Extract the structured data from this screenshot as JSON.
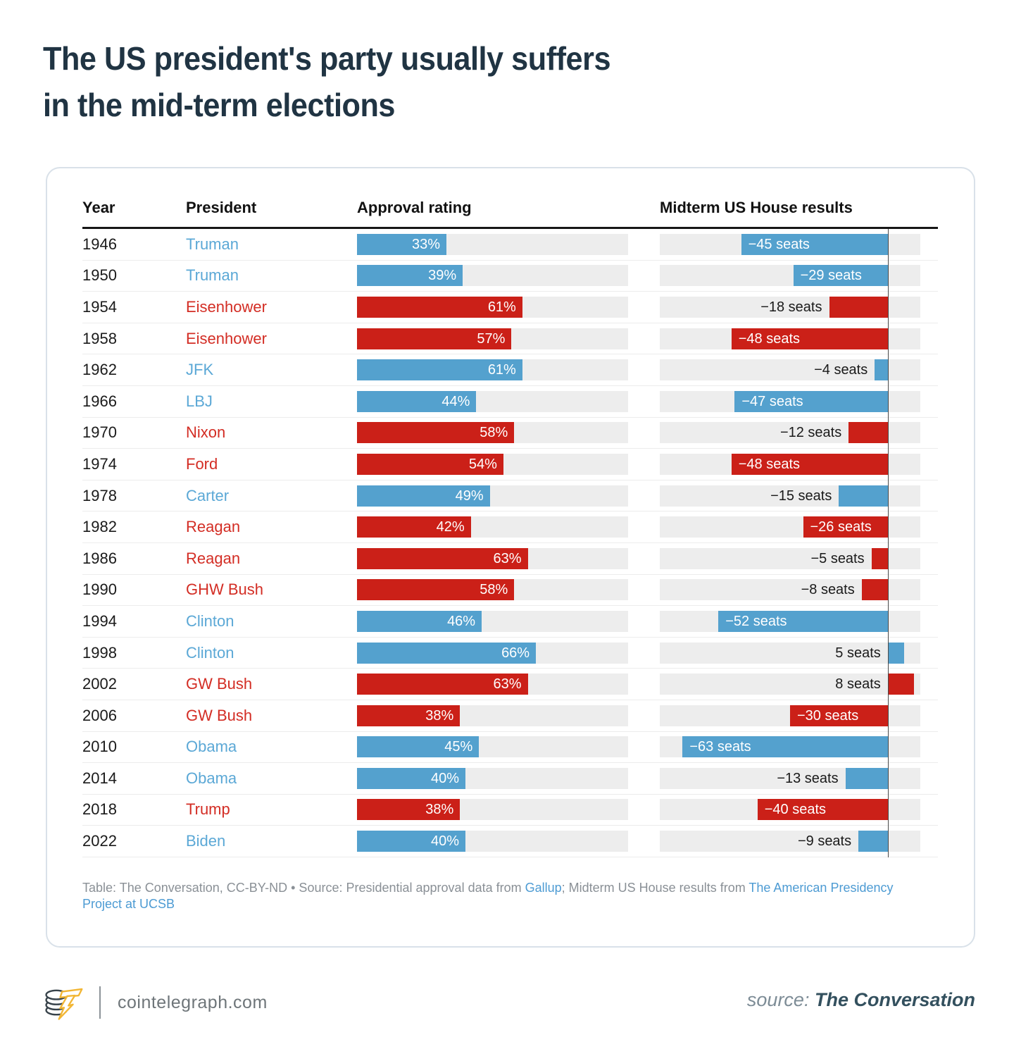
{
  "title": {
    "line1": "The US president's party usually suffers",
    "line2": "in the mid-term elections"
  },
  "chart_data": {
    "type": "table",
    "title": "The US president's party usually suffers in the mid-term elections",
    "columns": [
      "Year",
      "President",
      "Approval rating",
      "Midterm US House results"
    ],
    "approval_axis_range_pct": [
      0,
      100
    ],
    "midterm_axis_range_seats": [
      -70,
      10
    ],
    "legend": "bar color encodes president's party: blue = Democratic, red = Republican",
    "rows": [
      {
        "year": "1946",
        "president": "Truman",
        "party": "D",
        "approval_pct": 33,
        "approval_label": "33%",
        "seats": -45,
        "seats_label": "−45 seats"
      },
      {
        "year": "1950",
        "president": "Truman",
        "party": "D",
        "approval_pct": 39,
        "approval_label": "39%",
        "seats": -29,
        "seats_label": "−29 seats"
      },
      {
        "year": "1954",
        "president": "Eisenhower",
        "party": "R",
        "approval_pct": 61,
        "approval_label": "61%",
        "seats": -18,
        "seats_label": "−18 seats"
      },
      {
        "year": "1958",
        "president": "Eisenhower",
        "party": "R",
        "approval_pct": 57,
        "approval_label": "57%",
        "seats": -48,
        "seats_label": "−48 seats"
      },
      {
        "year": "1962",
        "president": "JFK",
        "party": "D",
        "approval_pct": 61,
        "approval_label": "61%",
        "seats": -4,
        "seats_label": "−4 seats"
      },
      {
        "year": "1966",
        "president": "LBJ",
        "party": "D",
        "approval_pct": 44,
        "approval_label": "44%",
        "seats": -47,
        "seats_label": "−47 seats"
      },
      {
        "year": "1970",
        "president": "Nixon",
        "party": "R",
        "approval_pct": 58,
        "approval_label": "58%",
        "seats": -12,
        "seats_label": "−12 seats"
      },
      {
        "year": "1974",
        "president": "Ford",
        "party": "R",
        "approval_pct": 54,
        "approval_label": "54%",
        "seats": -48,
        "seats_label": "−48 seats"
      },
      {
        "year": "1978",
        "president": "Carter",
        "party": "D",
        "approval_pct": 49,
        "approval_label": "49%",
        "seats": -15,
        "seats_label": "−15 seats"
      },
      {
        "year": "1982",
        "president": "Reagan",
        "party": "R",
        "approval_pct": 42,
        "approval_label": "42%",
        "seats": -26,
        "seats_label": "−26 seats"
      },
      {
        "year": "1986",
        "president": "Reagan",
        "party": "R",
        "approval_pct": 63,
        "approval_label": "63%",
        "seats": -5,
        "seats_label": "−5 seats"
      },
      {
        "year": "1990",
        "president": "GHW Bush",
        "party": "R",
        "approval_pct": 58,
        "approval_label": "58%",
        "seats": -8,
        "seats_label": "−8 seats"
      },
      {
        "year": "1994",
        "president": "Clinton",
        "party": "D",
        "approval_pct": 46,
        "approval_label": "46%",
        "seats": -52,
        "seats_label": "−52 seats"
      },
      {
        "year": "1998",
        "president": "Clinton",
        "party": "D",
        "approval_pct": 66,
        "approval_label": "66%",
        "seats": 5,
        "seats_label": "5 seats"
      },
      {
        "year": "2002",
        "president": "GW Bush",
        "party": "R",
        "approval_pct": 63,
        "approval_label": "63%",
        "seats": 8,
        "seats_label": "8 seats"
      },
      {
        "year": "2006",
        "president": "GW Bush",
        "party": "R",
        "approval_pct": 38,
        "approval_label": "38%",
        "seats": -30,
        "seats_label": "−30 seats"
      },
      {
        "year": "2010",
        "president": "Obama",
        "party": "D",
        "approval_pct": 45,
        "approval_label": "45%",
        "seats": -63,
        "seats_label": "−63 seats"
      },
      {
        "year": "2014",
        "president": "Obama",
        "party": "D",
        "approval_pct": 40,
        "approval_label": "40%",
        "seats": -13,
        "seats_label": "−13 seats"
      },
      {
        "year": "2018",
        "president": "Trump",
        "party": "R",
        "approval_pct": 38,
        "approval_label": "38%",
        "seats": -40,
        "seats_label": "−40 seats"
      },
      {
        "year": "2022",
        "president": "Biden",
        "party": "D",
        "approval_pct": 40,
        "approval_label": "40%",
        "seats": -9,
        "seats_label": "−9 seats"
      }
    ]
  },
  "footer_note": {
    "parts": [
      {
        "text": "Table: The Conversation, CC-BY-ND • Source: Presidential approval data from ",
        "link": false
      },
      {
        "text": "Gallup",
        "link": true
      },
      {
        "text": "; Midterm US House results from ",
        "link": false
      },
      {
        "text": "The American Presidency Project at UCSB",
        "link": true
      }
    ]
  },
  "branding": {
    "site": "cointelegraph.com",
    "source_prefix": "source: ",
    "source_name": "The Conversation"
  },
  "colors": {
    "dem_bar": "#54a1ce",
    "rep_bar": "#cb2018",
    "dem_text": "#5ba8d6",
    "rep_text": "#d32d24",
    "track": "#ededed",
    "outside_label": "#1a1a1a",
    "zero_line": "#4a4a4a",
    "link": "#4d9bd3",
    "title": "#203443",
    "bolt_yellow": "#f2b634",
    "coin_dark": "#37424a"
  }
}
